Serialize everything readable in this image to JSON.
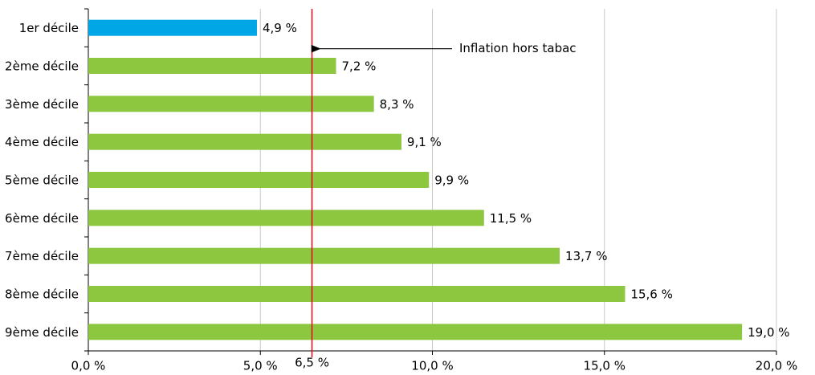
{
  "chart_data": {
    "type": "bar",
    "orientation": "horizontal",
    "categories": [
      "1er décile",
      "2ème décile",
      "3ème décile",
      "4ème décile",
      "5ème décile",
      "6ème décile",
      "7ème décile",
      "8ème décile",
      "9ème décile"
    ],
    "values": [
      4.9,
      7.2,
      8.3,
      9.1,
      9.9,
      11.5,
      13.7,
      15.6,
      19.0
    ],
    "value_labels": [
      "4,9 %",
      "7,2 %",
      "8,3 %",
      "9,1 %",
      "9,9 %",
      "11,5 %",
      "13,7 %",
      "15,6 %",
      "19,0 %"
    ],
    "colors": [
      "#00a6e6",
      "#8dc63f",
      "#8dc63f",
      "#8dc63f",
      "#8dc63f",
      "#8dc63f",
      "#8dc63f",
      "#8dc63f",
      "#8dc63f"
    ],
    "xlim": [
      0,
      20
    ],
    "xticks": [
      {
        "value": 0,
        "label": "0,0 %"
      },
      {
        "value": 5,
        "label": "5,0 %"
      },
      {
        "value": 10,
        "label": "10,0 %"
      },
      {
        "value": 15,
        "label": "15,0 %"
      },
      {
        "value": 20,
        "label": "20,0 %"
      }
    ],
    "grid": true,
    "reference_line": {
      "value": 6.5,
      "label": "6,5 %",
      "color": "#e30613",
      "annotation": "Inflation hors tabac"
    }
  }
}
